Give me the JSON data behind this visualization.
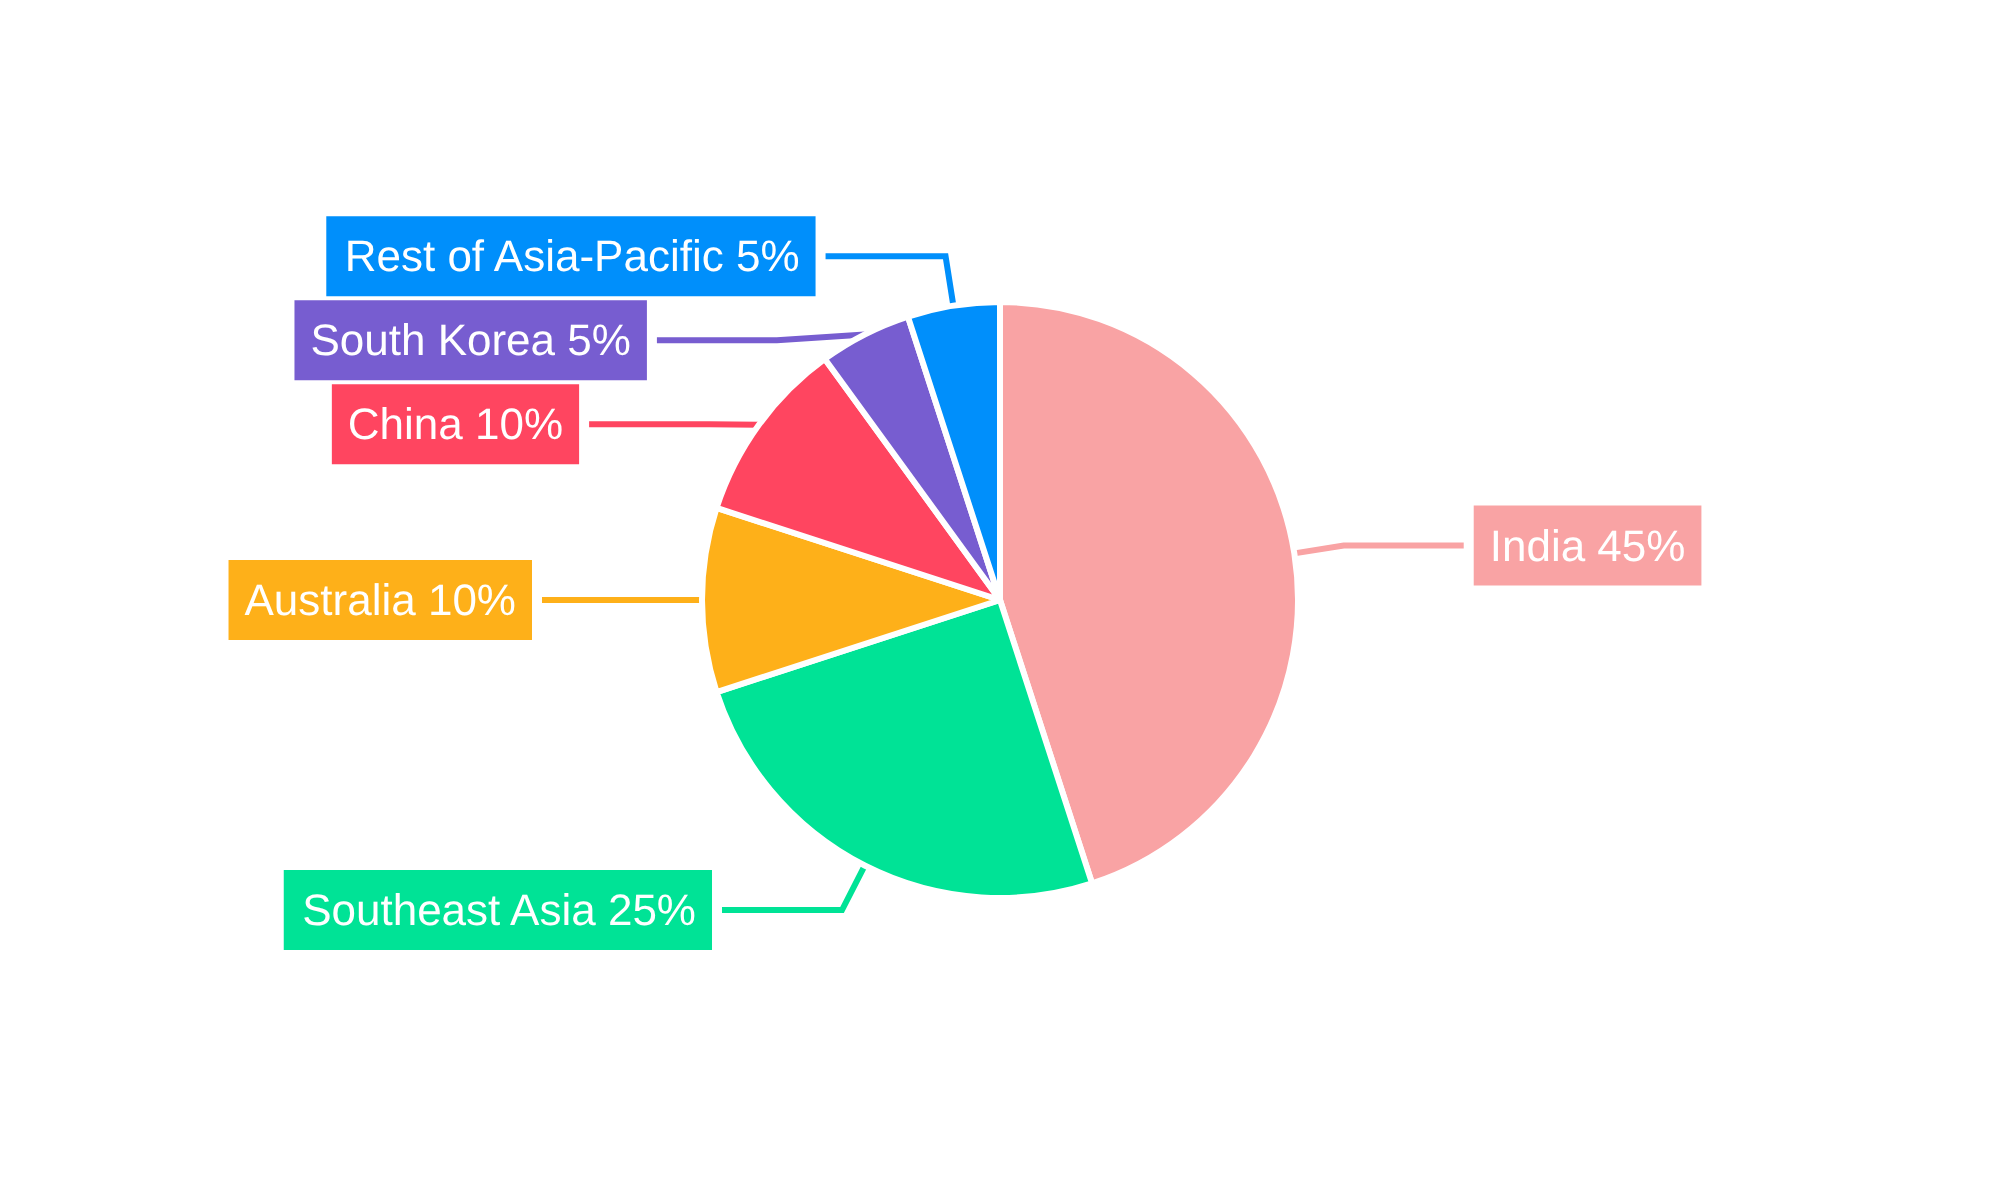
{
  "chart_data": {
    "type": "pie",
    "categories": [
      "India",
      "Southeast Asia",
      "Australia",
      "China",
      "South Korea",
      "Rest of Asia-Pacific"
    ],
    "values": [
      45,
      25,
      10,
      10,
      5,
      5
    ],
    "value_labels": [
      "45%",
      "25%",
      "10%",
      "10%",
      "5%",
      "5%"
    ],
    "colors": [
      "#f9a3a4",
      "#00e396",
      "#feb019",
      "#ff4560",
      "#775dd0",
      "#008ffb"
    ],
    "legend": false
  }
}
